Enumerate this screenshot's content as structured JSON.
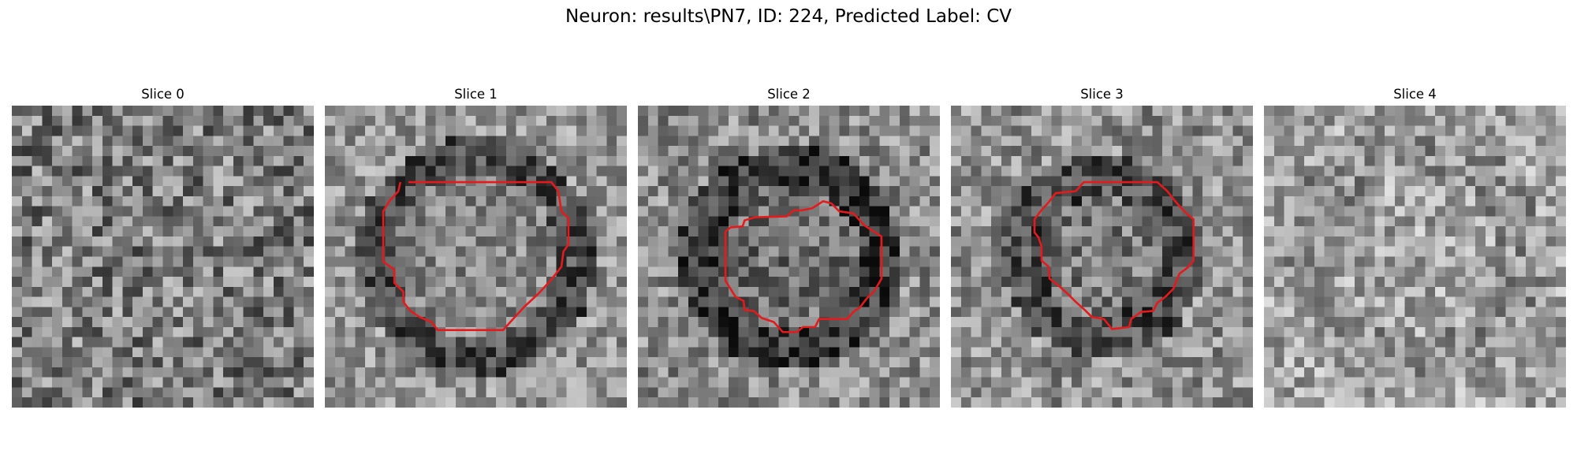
{
  "figure": {
    "title": "Neuron: results\\PN7, ID: 224, Predicted Label: CV"
  },
  "colors": {
    "background": "#ffffff",
    "contour": "#e41a1c"
  },
  "grid_size": 30,
  "slices": [
    {
      "title": "Slice 0",
      "has_contour": false,
      "contour": []
    },
    {
      "title": "Slice 1",
      "has_contour": true,
      "contour": [
        [
          8.3,
          7.6
        ],
        [
          14,
          7.6
        ],
        [
          20,
          7.6
        ],
        [
          22.5,
          7.6
        ],
        [
          23.2,
          8.5
        ],
        [
          23.5,
          10.5
        ],
        [
          24.2,
          11.2
        ],
        [
          24.2,
          13.8
        ],
        [
          23.7,
          14.5
        ],
        [
          23.5,
          16
        ],
        [
          22.4,
          17.4
        ],
        [
          21.2,
          18.7
        ],
        [
          19.8,
          20
        ],
        [
          18.7,
          21.2
        ],
        [
          17.7,
          22.3
        ],
        [
          11.2,
          22.3
        ],
        [
          10.6,
          21.5
        ],
        [
          9.4,
          21
        ],
        [
          8.5,
          20.4
        ],
        [
          7.8,
          19.5
        ],
        [
          7.8,
          18.5
        ],
        [
          6.9,
          17.6
        ],
        [
          6.9,
          16.3
        ],
        [
          5.8,
          15.5
        ],
        [
          5.8,
          10.5
        ],
        [
          6.4,
          9.5
        ],
        [
          7.3,
          8.5
        ],
        [
          7.5,
          7.6
        ]
      ]
    },
    {
      "title": "Slice 2",
      "has_contour": true,
      "contour": [
        [
          8.7,
          12.5
        ],
        [
          9.2,
          12.1
        ],
        [
          10.4,
          12
        ],
        [
          10.6,
          11.4
        ],
        [
          11.6,
          11.1
        ],
        [
          14.8,
          11
        ],
        [
          15.5,
          10.4
        ],
        [
          16.3,
          10.4
        ],
        [
          17.3,
          10.2
        ],
        [
          18.4,
          9.5
        ],
        [
          19.2,
          9.7
        ],
        [
          20,
          10.5
        ],
        [
          21.4,
          10.7
        ],
        [
          22.5,
          11.9
        ],
        [
          24.2,
          13
        ],
        [
          24.2,
          17.2
        ],
        [
          23.5,
          18.4
        ],
        [
          22.7,
          19.2
        ],
        [
          22.1,
          20
        ],
        [
          21.4,
          20.5
        ],
        [
          20.8,
          21.2
        ],
        [
          18,
          21.2
        ],
        [
          17.6,
          22
        ],
        [
          16.4,
          22
        ],
        [
          15.8,
          22.5
        ],
        [
          14.4,
          22.5
        ],
        [
          13.5,
          21.5
        ],
        [
          12.3,
          21.1
        ],
        [
          11.5,
          20.4
        ],
        [
          10.6,
          20.3
        ],
        [
          10.5,
          19.4
        ],
        [
          9.7,
          19
        ],
        [
          9.2,
          18.2
        ],
        [
          8.7,
          17.4
        ],
        [
          8.7,
          12.5
        ]
      ]
    },
    {
      "title": "Slice 3",
      "has_contour": true,
      "contour": [
        [
          8.9,
          10.5
        ],
        [
          9.7,
          9.6
        ],
        [
          10.4,
          8.7
        ],
        [
          12.4,
          8.5
        ],
        [
          13.2,
          7.6
        ],
        [
          20.5,
          7.6
        ],
        [
          21.5,
          8.5
        ],
        [
          22.2,
          9.4
        ],
        [
          22.9,
          10.2
        ],
        [
          23.5,
          10.8
        ],
        [
          24.1,
          11.3
        ],
        [
          24.1,
          15.4
        ],
        [
          23.5,
          16.1
        ],
        [
          22.7,
          16.7
        ],
        [
          22.1,
          18.2
        ],
        [
          21.3,
          19
        ],
        [
          20.5,
          19.6
        ],
        [
          20.1,
          20.4
        ],
        [
          18.9,
          20.5
        ],
        [
          17.9,
          21.2
        ],
        [
          17.7,
          22
        ],
        [
          16,
          22.2
        ],
        [
          15.2,
          21.2
        ],
        [
          14,
          21
        ],
        [
          13.3,
          20.3
        ],
        [
          12.4,
          19.5
        ],
        [
          11.6,
          18.7
        ],
        [
          10.6,
          17.8
        ],
        [
          9.8,
          17.2
        ],
        [
          9.7,
          16
        ],
        [
          9,
          15.4
        ],
        [
          9,
          14
        ],
        [
          8.7,
          13.1
        ],
        [
          8.3,
          12.6
        ],
        [
          8.3,
          11.3
        ],
        [
          8.9,
          10.5
        ]
      ]
    },
    {
      "title": "Slice 4",
      "has_contour": false,
      "contour": []
    }
  ]
}
